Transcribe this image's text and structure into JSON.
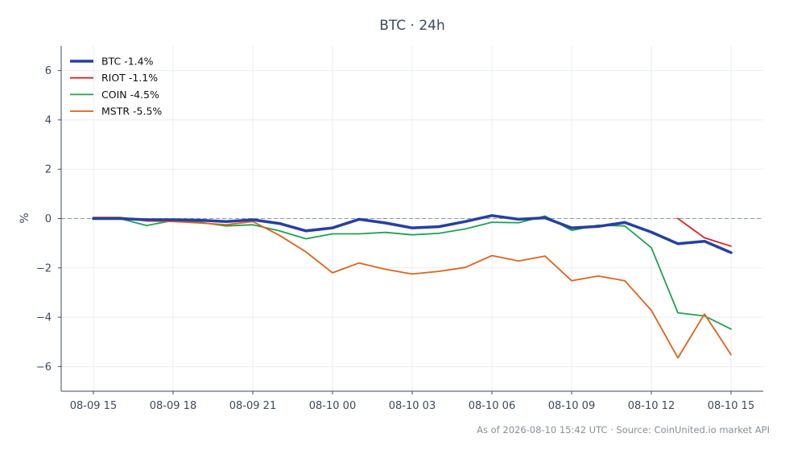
{
  "chart_data": {
    "type": "line",
    "title": "BTC · 24h",
    "xlabel": "",
    "ylabel": "%",
    "x": [
      "08-09 15",
      "08-09 16",
      "08-09 17",
      "08-09 18",
      "08-09 19",
      "08-09 20",
      "08-09 21",
      "08-09 22",
      "08-09 23",
      "08-10 00",
      "08-10 01",
      "08-10 02",
      "08-10 03",
      "08-10 04",
      "08-10 05",
      "08-10 06",
      "08-10 07",
      "08-10 08",
      "08-10 09",
      "08-10 10",
      "08-10 11",
      "08-10 12",
      "08-10 13",
      "08-10 14",
      "08-10 15"
    ],
    "xticks": [
      "08-09 15",
      "08-09 18",
      "08-09 21",
      "08-10 00",
      "08-10 03",
      "08-10 06",
      "08-10 09",
      "08-10 12",
      "08-10 15"
    ],
    "ylim": [
      -7,
      7
    ],
    "yticks": [
      6,
      4,
      2,
      0,
      -2,
      -4,
      -6
    ],
    "grid": true,
    "legend_position": "top-left",
    "zero_line": true,
    "series": [
      {
        "name": "BTC -1.4%",
        "color": "#2540a0",
        "width": 3.5,
        "values": [
          0.0,
          0.0,
          -0.05,
          -0.05,
          -0.07,
          -0.12,
          -0.05,
          -0.2,
          -0.5,
          -0.38,
          -0.03,
          -0.18,
          -0.38,
          -0.33,
          -0.12,
          0.12,
          -0.03,
          0.03,
          -0.38,
          -0.32,
          -0.16,
          -0.55,
          -1.02,
          -0.92,
          -1.38
        ]
      },
      {
        "name": "RIOT -1.1%",
        "color": "#d62728",
        "width": 1.8,
        "values": [
          null,
          null,
          null,
          null,
          null,
          null,
          null,
          null,
          null,
          null,
          null,
          null,
          null,
          null,
          null,
          null,
          null,
          null,
          null,
          null,
          null,
          null,
          0.0,
          -0.78,
          -1.12
        ]
      },
      {
        "name": "COIN -4.5%",
        "color": "#22a050",
        "width": 1.8,
        "values": [
          0.02,
          0.0,
          -0.28,
          -0.08,
          -0.15,
          -0.3,
          -0.25,
          -0.5,
          -0.82,
          -0.62,
          -0.62,
          -0.56,
          -0.66,
          -0.6,
          -0.42,
          -0.15,
          -0.17,
          0.1,
          -0.48,
          -0.27,
          -0.3,
          -1.18,
          -3.82,
          -3.95,
          -4.48
        ]
      },
      {
        "name": "MSTR -5.5%",
        "color": "#e0621d",
        "width": 1.8,
        "values": [
          0.05,
          0.05,
          -0.1,
          -0.12,
          -0.18,
          -0.25,
          -0.12,
          -0.68,
          -1.35,
          -2.2,
          -1.8,
          -2.06,
          -2.25,
          -2.14,
          -1.98,
          -1.5,
          -1.72,
          -1.52,
          -2.52,
          -2.33,
          -2.52,
          -3.72,
          -5.65,
          -3.87,
          -5.52
        ]
      }
    ]
  },
  "footer": "As of 2026-08-10 15:42 UTC · Source: CoinUnited.io market API"
}
